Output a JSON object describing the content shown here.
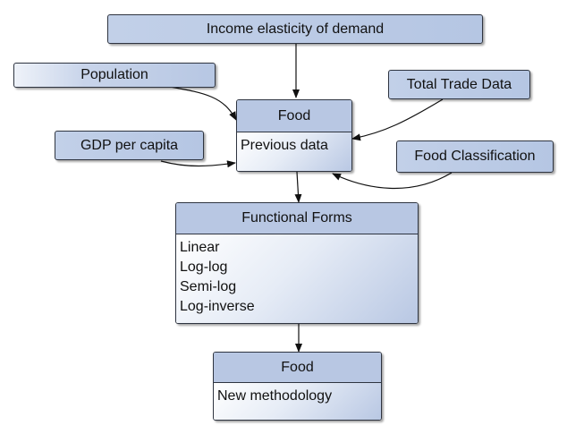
{
  "nodes": {
    "income_elasticity": "Income elasticity of demand",
    "population": "Population",
    "gdp_per_capita": "GDP per capita",
    "total_trade_data": "Total Trade Data",
    "food_classification": "Food Classification",
    "food_input": {
      "title": "Food",
      "body": "Previous data"
    },
    "functional_forms": {
      "title": "Functional Forms",
      "items": [
        "Linear",
        "Log-log",
        "Semi-log",
        "Log-inverse"
      ]
    },
    "food_output": {
      "title": "Food",
      "body": "New methodology"
    }
  },
  "colors": {
    "header_fill": "#b8c7e3",
    "border": "#2e3440",
    "arrow": "#111111"
  }
}
